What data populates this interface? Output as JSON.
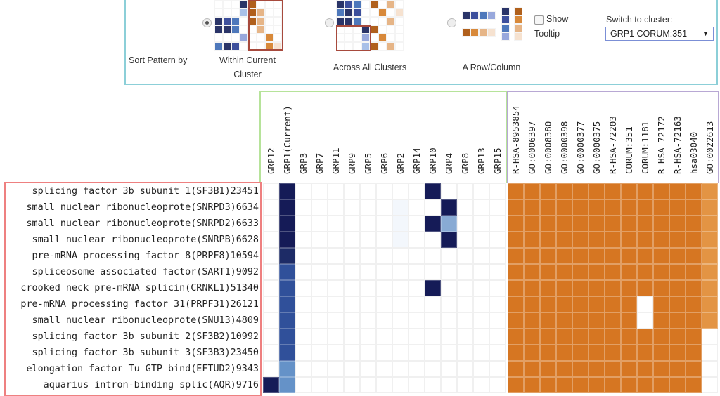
{
  "controls": {
    "sort_label": "Sort Pattern by",
    "options": [
      {
        "label": "Within Current Cluster",
        "selected": true
      },
      {
        "label": "Across All Clusters",
        "selected": false
      },
      {
        "label": "A Row/Column",
        "selected": false
      }
    ],
    "show_tooltip": {
      "label_line1": "Show",
      "label_line2": "Tooltip",
      "checked": false
    },
    "switch_cluster": {
      "label": "Switch to cluster:",
      "value": "GRP1 CORUM:351"
    }
  },
  "colors": {
    "blue_scale": [
      "#ffffff",
      "#151b57"
    ],
    "orange": "#d67622",
    "orange_light": "#e39444"
  },
  "heatmap": {
    "cluster_columns": [
      "GRP12",
      "GRP1(Current)",
      "GRP3",
      "GRP7",
      "GRP11",
      "GRP9",
      "GRP5",
      "GRP6",
      "GRP2",
      "GRP14",
      "GRP10",
      "GRP4",
      "GRP8",
      "GRP13",
      "GRP15"
    ],
    "term_columns": [
      "R-HSA-8953854",
      "GO:0006397",
      "GO:0008380",
      "GO:0000398",
      "GO:0000377",
      "GO:0000375",
      "R-HSA-72203",
      "CORUM:351",
      "CORUM:1181",
      "R-HSA-72172",
      "R-HSA-72163",
      "hsa03040",
      "GO:0022613"
    ],
    "rows": [
      "splicing factor 3b subunit 1(SF3B1)23451",
      "small nuclear ribonucleoprote(SNRPD3)6634",
      "small nuclear ribonucleoprote(SNRPD2)6633",
      "small nuclear ribonucleoprote(SNRPB)6628",
      "pre-mRNA processing factor 8(PRPF8)10594",
      "spliceosome associated factor(SART1)9092",
      "crooked neck pre-mRNA splicin(CRNKL1)51340",
      "pre-mRNA processing factor 31(PRPF31)26121",
      "small nuclear ribonucleoprote(SNU13)4809",
      "splicing factor 3b subunit 2(SF3B2)10992",
      "splicing factor 3b subunit 3(SF3B3)23450",
      "elongation factor Tu GTP bind(EFTUD2)9343",
      "aquarius intron-binding splic(AQR)9716"
    ],
    "cluster_values": [
      [
        0,
        1,
        0,
        0,
        0,
        0,
        0,
        0,
        0,
        0,
        1,
        0,
        0,
        0,
        0
      ],
      [
        0,
        1,
        0,
        0,
        0,
        0,
        0,
        0,
        0.03,
        0,
        0,
        1,
        0,
        0,
        0
      ],
      [
        0,
        1,
        0,
        0,
        0,
        0,
        0,
        0,
        0.03,
        0,
        1,
        0.4,
        0,
        0,
        0
      ],
      [
        0,
        1,
        0,
        0,
        0,
        0,
        0,
        0,
        0.03,
        0,
        0,
        1,
        0,
        0,
        0
      ],
      [
        0,
        0.95,
        0,
        0,
        0,
        0,
        0,
        0,
        0,
        0,
        0,
        0,
        0,
        0,
        0
      ],
      [
        0,
        0.8,
        0,
        0,
        0,
        0,
        0,
        0,
        0,
        0,
        0,
        0,
        0,
        0,
        0
      ],
      [
        0,
        0.8,
        0,
        0,
        0,
        0,
        0,
        0,
        0,
        0,
        1,
        0,
        0,
        0,
        0
      ],
      [
        0,
        0.8,
        0,
        0,
        0,
        0,
        0,
        0,
        0,
        0,
        0,
        0,
        0,
        0,
        0
      ],
      [
        0,
        0.8,
        0,
        0,
        0,
        0,
        0,
        0,
        0,
        0,
        0,
        0,
        0,
        0,
        0
      ],
      [
        0,
        0.8,
        0,
        0,
        0,
        0,
        0,
        0,
        0,
        0,
        0,
        0,
        0,
        0,
        0
      ],
      [
        0,
        0.8,
        0,
        0,
        0,
        0,
        0,
        0,
        0,
        0,
        0,
        0,
        0,
        0,
        0
      ],
      [
        0,
        0.55,
        0,
        0,
        0,
        0,
        0,
        0,
        0,
        0,
        0,
        0,
        0,
        0,
        0
      ],
      [
        1,
        0.55,
        0,
        0,
        0,
        0,
        0,
        0,
        0,
        0,
        0,
        0,
        0,
        0,
        0
      ]
    ],
    "term_values": [
      [
        1,
        1,
        1,
        1,
        1,
        1,
        1,
        1,
        1,
        1,
        1,
        1,
        0.8
      ],
      [
        1,
        1,
        1,
        1,
        1,
        1,
        1,
        1,
        1,
        1,
        1,
        1,
        0.8
      ],
      [
        1,
        1,
        1,
        1,
        1,
        1,
        1,
        1,
        1,
        1,
        1,
        1,
        0.8
      ],
      [
        1,
        1,
        1,
        1,
        1,
        1,
        1,
        1,
        1,
        1,
        1,
        1,
        0.8
      ],
      [
        1,
        1,
        1,
        1,
        1,
        1,
        1,
        1,
        1,
        1,
        1,
        1,
        0.8
      ],
      [
        1,
        1,
        1,
        1,
        1,
        1,
        1,
        1,
        1,
        1,
        1,
        1,
        0.8
      ],
      [
        1,
        1,
        1,
        1,
        1,
        1,
        1,
        1,
        1,
        1,
        1,
        1,
        0.8
      ],
      [
        1,
        1,
        1,
        1,
        1,
        1,
        1,
        1,
        0,
        1,
        1,
        1,
        0.8
      ],
      [
        1,
        1,
        1,
        1,
        1,
        1,
        1,
        1,
        0,
        1,
        1,
        1,
        0.8
      ],
      [
        1,
        1,
        1,
        1,
        1,
        1,
        1,
        1,
        1,
        1,
        1,
        1,
        0
      ],
      [
        1,
        1,
        1,
        1,
        1,
        1,
        1,
        1,
        1,
        1,
        1,
        1,
        0
      ],
      [
        1,
        1,
        1,
        1,
        1,
        1,
        1,
        1,
        1,
        1,
        1,
        1,
        0
      ],
      [
        1,
        1,
        1,
        1,
        1,
        1,
        1,
        1,
        1,
        1,
        1,
        1,
        0
      ]
    ]
  }
}
